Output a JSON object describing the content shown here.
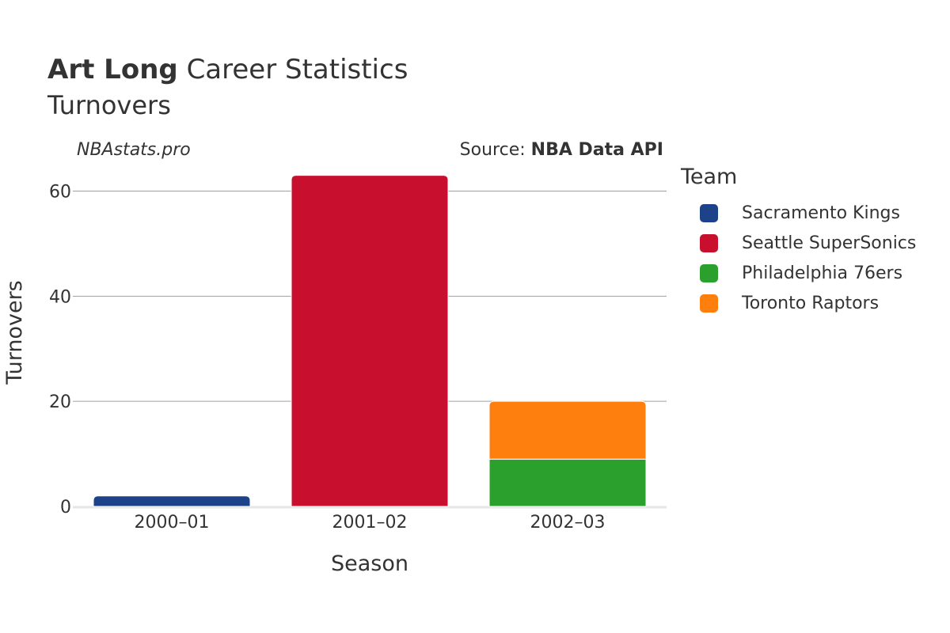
{
  "header": {
    "title_bold": "Art Long",
    "title_rest": "Career Statistics",
    "subtitle": "Turnovers"
  },
  "watermark": "NBAstats.pro",
  "source": {
    "prefix": "Source:",
    "name": "NBA Data API"
  },
  "legend": {
    "title": "Team",
    "items": [
      {
        "label": "Sacramento Kings",
        "color": "#1d428a"
      },
      {
        "label": "Seattle SuperSonics",
        "color": "#c8102e"
      },
      {
        "label": "Philadelphia 76ers",
        "color": "#2ca02c"
      },
      {
        "label": "Toronto Raptors",
        "color": "#ff7f0e"
      }
    ]
  },
  "chart_data": {
    "type": "bar",
    "stacked": true,
    "categories": [
      "2000–01",
      "2001–02",
      "2002–03"
    ],
    "series": [
      {
        "name": "Sacramento Kings",
        "color": "#1d428a",
        "values": [
          2,
          0,
          0
        ]
      },
      {
        "name": "Seattle SuperSonics",
        "color": "#c8102e",
        "values": [
          0,
          63,
          0
        ]
      },
      {
        "name": "Philadelphia 76ers",
        "color": "#2ca02c",
        "values": [
          0,
          0,
          9
        ]
      },
      {
        "name": "Toronto Raptors",
        "color": "#ff7f0e",
        "values": [
          0,
          0,
          11
        ]
      }
    ],
    "xlabel": "Season",
    "ylabel": "Turnovers",
    "ylim": [
      0,
      66
    ],
    "yticks": [
      0,
      20,
      40,
      60
    ],
    "grid": true,
    "legend_position": "right"
  }
}
